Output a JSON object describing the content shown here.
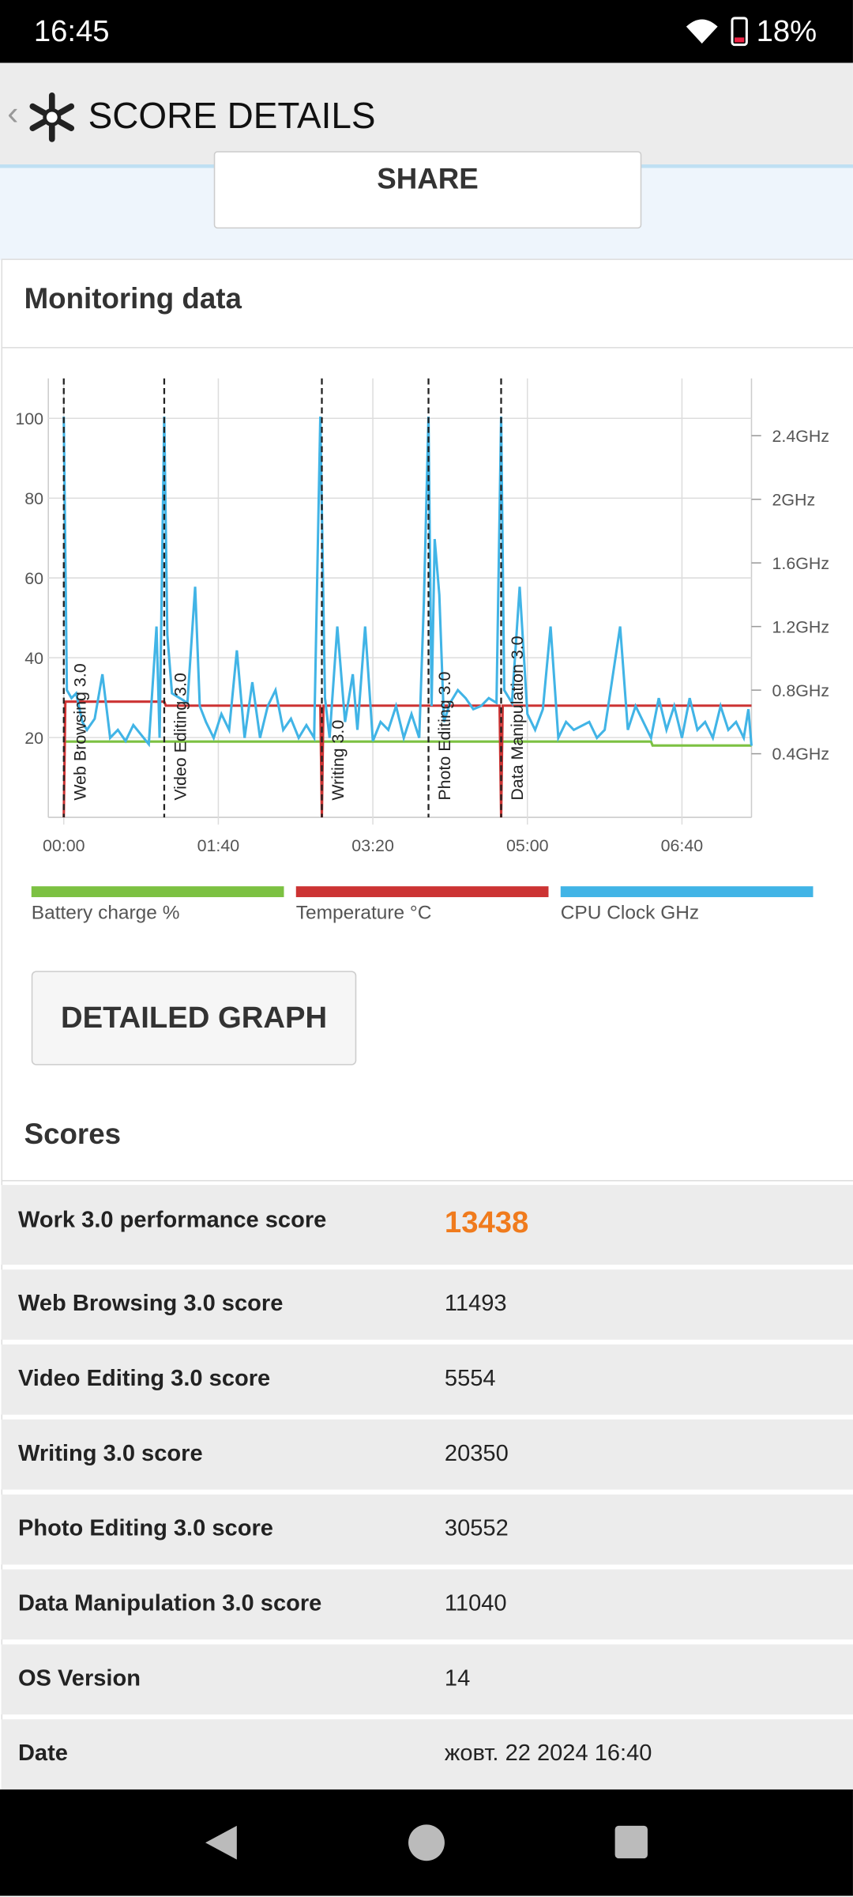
{
  "status_bar": {
    "time": "16:45",
    "battery": "18%"
  },
  "header": {
    "title": "SCORE DETAILS"
  },
  "share": "SHARE",
  "monitoring_title": "Monitoring data",
  "chart_data": {
    "type": "line",
    "xlim": [
      -10,
      445
    ],
    "xticks": [
      {
        "value": 0,
        "label": "00:00"
      },
      {
        "value": 100,
        "label": "01:40"
      },
      {
        "value": 200,
        "label": "03:20"
      },
      {
        "value": 300,
        "label": "05:00"
      },
      {
        "value": 400,
        "label": "06:40"
      }
    ],
    "ylim": [
      0,
      110
    ],
    "yticks": [
      20,
      40,
      60,
      80,
      100
    ],
    "y2lim": [
      0,
      2.76
    ],
    "y2ticks": [
      {
        "value": 0.4,
        "label": "0.4GHz"
      },
      {
        "value": 0.8,
        "label": "0.8GHz"
      },
      {
        "value": 1.2,
        "label": "1.2GHz"
      },
      {
        "value": 1.6,
        "label": "1.6GHz"
      },
      {
        "value": 2,
        "label": "2GHz"
      },
      {
        "value": 2.4,
        "label": "2.4GHz"
      }
    ],
    "grid": true,
    "annotations": [
      {
        "x": 0,
        "label": "Web Browsing 3.0"
      },
      {
        "x": 65,
        "label": "Video Editing 3.0"
      },
      {
        "x": 167,
        "label": "Writing 3.0"
      },
      {
        "x": 236,
        "label": "Photo Editing 3.0"
      },
      {
        "x": 283,
        "label": "Data Manipulation 3.0"
      }
    ],
    "series": [
      {
        "name": "Battery charge %",
        "color": "#7cc142",
        "x": [
          0,
          380,
          381,
          445
        ],
        "values": [
          19,
          19,
          18,
          18
        ]
      },
      {
        "name": "Temperature °C",
        "color": "#cc3333",
        "x": [
          0,
          1,
          65,
          66,
          166,
          167,
          168,
          282,
          283,
          284,
          445
        ],
        "values": [
          0,
          29,
          29,
          28,
          28,
          0,
          28,
          28,
          0,
          28,
          28
        ]
      },
      {
        "name": "CPU Clock GHz",
        "color": "#41b4e6",
        "axis": "y2",
        "x": [
          0,
          2,
          5,
          8,
          12,
          15,
          20,
          25,
          30,
          35,
          40,
          45,
          50,
          55,
          60,
          62,
          65,
          67,
          70,
          75,
          80,
          85,
          88,
          92,
          97,
          102,
          107,
          112,
          117,
          122,
          127,
          132,
          137,
          142,
          147,
          152,
          157,
          162,
          166,
          169,
          172,
          177,
          182,
          187,
          190,
          195,
          200,
          205,
          210,
          215,
          220,
          225,
          230,
          233,
          236,
          238,
          240,
          243,
          246,
          250,
          255,
          260,
          265,
          270,
          275,
          280,
          283,
          285,
          290,
          295,
          300,
          305,
          310,
          315,
          320,
          325,
          330,
          340,
          345,
          350,
          360,
          365,
          370,
          380,
          385,
          390,
          395,
          400,
          405,
          410,
          415,
          420,
          425,
          430,
          435,
          440,
          443,
          445
        ],
        "values": [
          2.52,
          0.8,
          0.75,
          0.78,
          0.6,
          0.55,
          0.62,
          0.9,
          0.5,
          0.55,
          0.48,
          0.58,
          0.52,
          0.46,
          1.2,
          0.5,
          2.52,
          1.15,
          0.78,
          0.75,
          0.72,
          1.45,
          0.7,
          0.6,
          0.5,
          0.65,
          0.55,
          1.05,
          0.5,
          0.85,
          0.5,
          0.7,
          0.8,
          0.55,
          0.62,
          0.5,
          0.58,
          0.5,
          2.52,
          0.75,
          0.5,
          1.2,
          0.6,
          0.9,
          0.55,
          1.2,
          0.48,
          0.6,
          0.55,
          0.7,
          0.5,
          0.65,
          0.5,
          1.35,
          2.52,
          0.7,
          1.75,
          1.4,
          0.6,
          0.72,
          0.8,
          0.75,
          0.68,
          0.7,
          0.75,
          0.72,
          2.52,
          0.8,
          0.72,
          1.45,
          0.65,
          0.55,
          0.68,
          1.2,
          0.5,
          0.6,
          0.55,
          0.6,
          0.5,
          0.55,
          1.2,
          0.55,
          0.7,
          0.5,
          0.75,
          0.55,
          0.7,
          0.5,
          0.75,
          0.55,
          0.6,
          0.5,
          0.7,
          0.55,
          0.6,
          0.5,
          0.68,
          0.45
        ]
      }
    ]
  },
  "detailed_graph": "DETAILED GRAPH",
  "scores": {
    "title": "Scores",
    "rows": [
      [
        "Work 3.0 performance score",
        13438
      ],
      [
        "Web Browsing 3.0 score",
        11493
      ],
      [
        "Video Editing 3.0 score",
        5554
      ],
      [
        "Writing 3.0 score",
        20350
      ],
      [
        "Photo Editing 3.0 score",
        30552
      ],
      [
        "Data Manipulation 3.0 score",
        11040
      ],
      [
        "OS Version",
        14
      ],
      [
        "Date",
        "жовт. 22 2024 16:40"
      ]
    ]
  }
}
